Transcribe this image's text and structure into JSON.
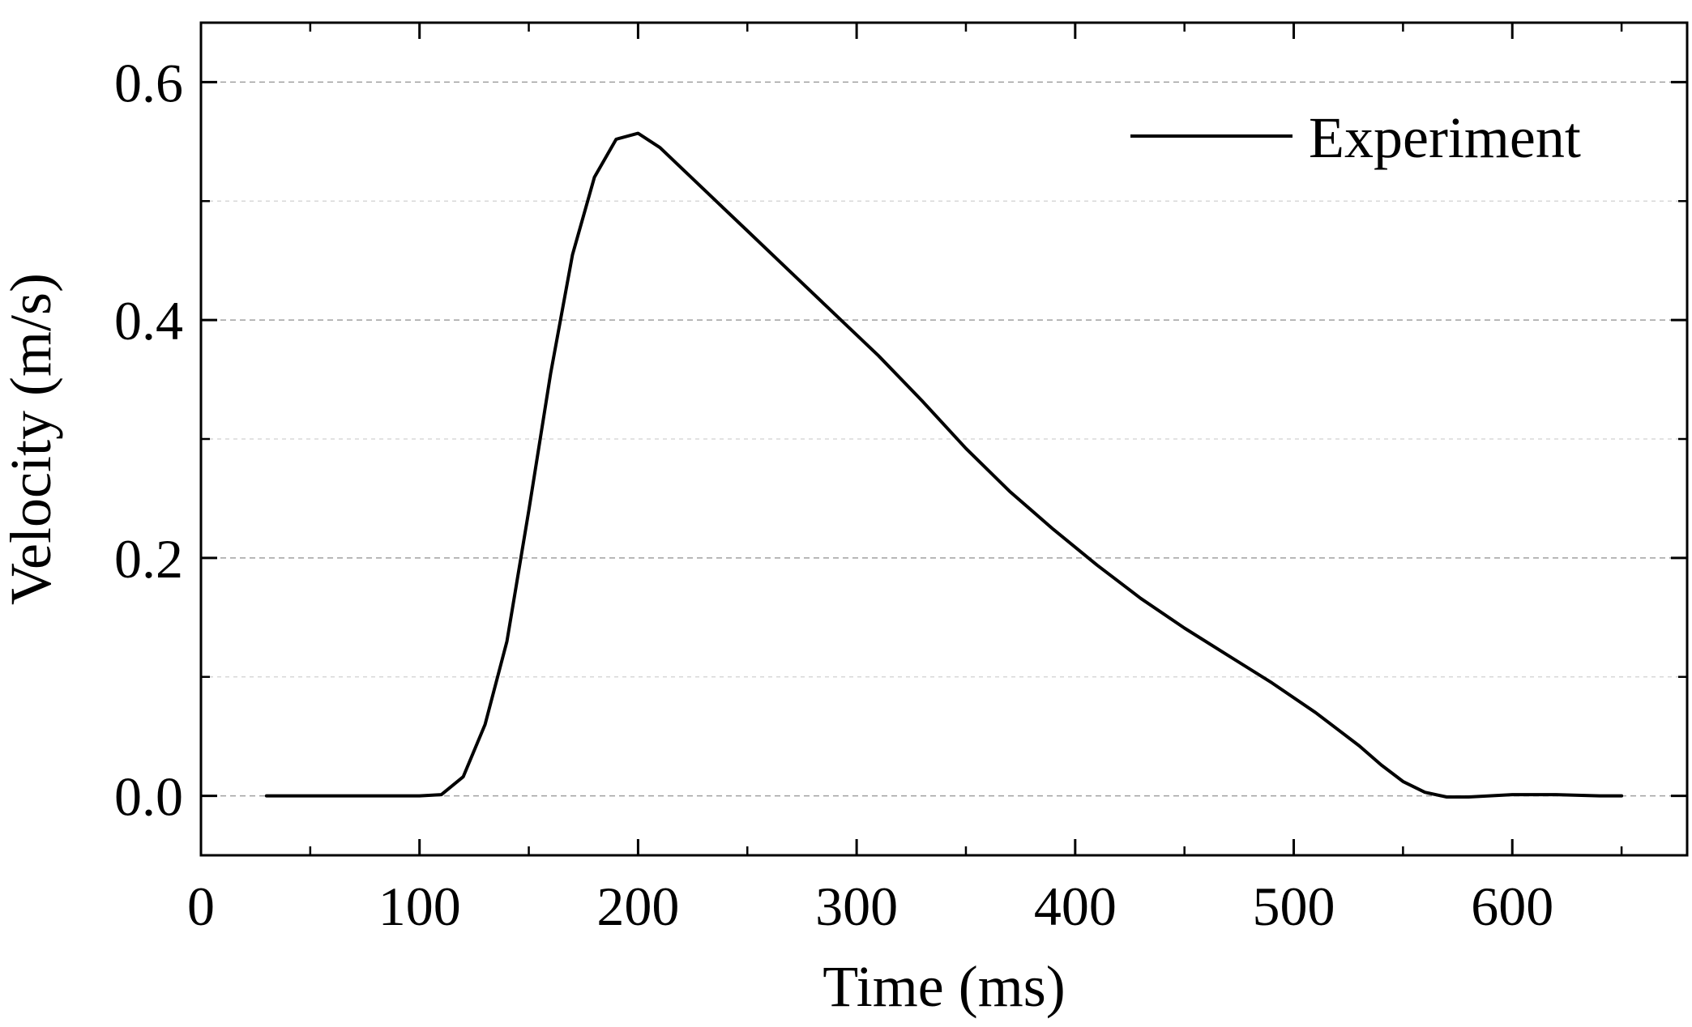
{
  "chart_data": {
    "type": "line",
    "xlabel": "Time (ms)",
    "ylabel": "Velocity (m/s)",
    "xlim": [
      0,
      680
    ],
    "ylim": [
      -0.05,
      0.65
    ],
    "xticks": [
      0,
      100,
      200,
      300,
      400,
      500,
      600
    ],
    "xtick_labels": [
      "0",
      "100",
      "200",
      "300",
      "400",
      "500",
      "600"
    ],
    "yticks": [
      0.0,
      0.2,
      0.4,
      0.6
    ],
    "ytick_labels": [
      "0.0",
      "0.2",
      "0.4",
      "0.6"
    ],
    "minor_yticks": [
      0.1,
      0.3,
      0.5
    ],
    "minor_xticks": [
      50,
      150,
      250,
      350,
      450,
      550,
      650
    ],
    "grid": "horizontal dashed",
    "legend_position": "top-right",
    "colors": {
      "line": "#000000",
      "grid_major": "#a0a0a0",
      "grid_minor": "#d0d0d0",
      "axes": "#000000"
    },
    "series": [
      {
        "name": "Experiment",
        "x": [
          30,
          50,
          70,
          90,
          100,
          110,
          120,
          130,
          140,
          150,
          160,
          170,
          180,
          190,
          200,
          210,
          230,
          250,
          270,
          290,
          310,
          330,
          350,
          370,
          390,
          410,
          430,
          450,
          470,
          490,
          510,
          530,
          540,
          550,
          560,
          570,
          580,
          600,
          620,
          640,
          650
        ],
        "y": [
          0.0,
          0.0,
          0.0,
          0.0,
          0.0,
          0.001,
          0.016,
          0.06,
          0.13,
          0.24,
          0.355,
          0.455,
          0.52,
          0.552,
          0.557,
          0.545,
          0.51,
          0.475,
          0.44,
          0.405,
          0.37,
          0.332,
          0.292,
          0.256,
          0.224,
          0.194,
          0.166,
          0.141,
          0.118,
          0.095,
          0.07,
          0.042,
          0.026,
          0.012,
          0.003,
          -0.001,
          -0.001,
          0.001,
          0.001,
          0.0,
          0.0
        ]
      }
    ]
  }
}
